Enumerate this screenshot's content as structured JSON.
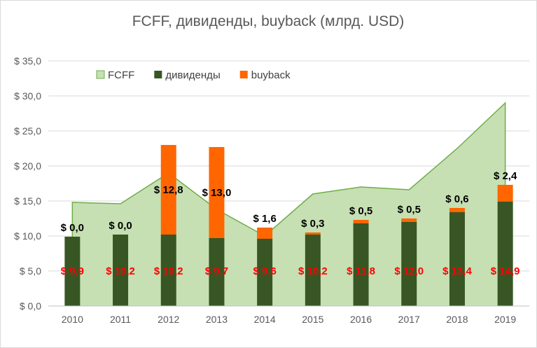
{
  "chart_data": {
    "type": "bar",
    "title": "FCFF, дивиденды, buyback (млрд. USD)",
    "categories": [
      "2010",
      "2011",
      "2012",
      "2013",
      "2014",
      "2015",
      "2016",
      "2017",
      "2018",
      "2019"
    ],
    "ylim": [
      0,
      35
    ],
    "y_ticks": [
      0,
      5,
      10,
      15,
      20,
      25,
      30,
      35
    ],
    "y_tick_labels": [
      "$ 0,0",
      "$ 5,0",
      "$ 10,0",
      "$ 15,0",
      "$ 20,0",
      "$ 25,0",
      "$ 30,0",
      "$ 35,0"
    ],
    "grid": true,
    "legend": "top-left",
    "series": [
      {
        "name": "FCFF",
        "kind": "area",
        "color": "#c6e0b4",
        "line_color": "#70ad47",
        "values": [
          14.8,
          14.6,
          19.0,
          13.8,
          10.0,
          16.0,
          17.0,
          16.6,
          22.5,
          29.0
        ]
      },
      {
        "name": "дивиденды",
        "kind": "stacked-bar",
        "color": "#375623",
        "values": [
          9.9,
          10.2,
          10.2,
          9.7,
          9.6,
          10.2,
          11.8,
          12.0,
          13.4,
          14.9
        ],
        "labels": [
          "$ 9,9",
          "$ 10,2",
          "$ 10,2",
          "$ 9,7",
          "$ 9,6",
          "$ 10,2",
          "$ 11,8",
          "$ 12,0",
          "$ 13,4",
          "$ 14,9"
        ],
        "label_color": "#ff0000"
      },
      {
        "name": "buyback",
        "kind": "stacked-bar",
        "color": "#ff6600",
        "values": [
          0.0,
          0.0,
          12.8,
          13.0,
          1.6,
          0.3,
          0.5,
          0.5,
          0.6,
          2.4
        ],
        "labels": [
          "$ 0,0",
          "$ 0,0",
          "$ 12,8",
          "$ 13,0",
          "$ 1,6",
          "$ 0,3",
          "$ 0,5",
          "$ 0,5",
          "$ 0,6",
          "$ 2,4"
        ],
        "label_color": "#000000"
      }
    ]
  }
}
